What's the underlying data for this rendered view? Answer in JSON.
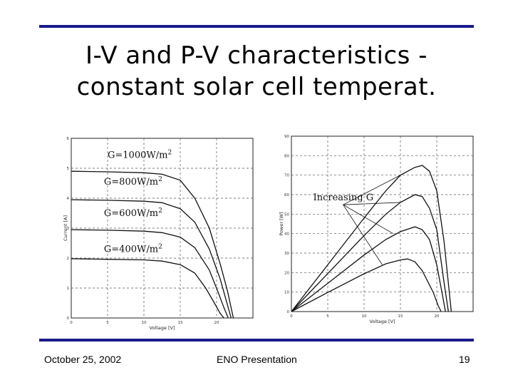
{
  "slide": {
    "title_lines": [
      "I-V and P-V characteristics -",
      "constant solar cell temperat."
    ],
    "footer": {
      "date": "October 25, 2002",
      "presentation": "ENO Presentation",
      "page": "19"
    },
    "rule_color": "#1a1a8c"
  },
  "chart_data": [
    {
      "type": "line",
      "xlabel": "Voltage [V]",
      "ylabel": "Current [A]",
      "xlim": [
        0,
        25
      ],
      "ylim": [
        0,
        6
      ],
      "xticks": [
        "0",
        "5",
        "10",
        "15",
        "20"
      ],
      "yticks": [
        "0",
        "1",
        "2",
        "3",
        "4",
        "5",
        "6"
      ],
      "grid": true,
      "series": [
        {
          "name": "G=1000W/m2",
          "points": [
            [
              0,
              4.9
            ],
            [
              5,
              4.88
            ],
            [
              10,
              4.85
            ],
            [
              12.5,
              4.8
            ],
            [
              15,
              4.6
            ],
            [
              17,
              4.0
            ],
            [
              19,
              3.0
            ],
            [
              20.5,
              1.8
            ],
            [
              21.5,
              0.9
            ],
            [
              22.3,
              0
            ]
          ]
        },
        {
          "name": "G=800W/m2",
          "points": [
            [
              0,
              3.95
            ],
            [
              5,
              3.93
            ],
            [
              10,
              3.9
            ],
            [
              12.5,
              3.85
            ],
            [
              15,
              3.65
            ],
            [
              17,
              3.2
            ],
            [
              19,
              2.3
            ],
            [
              20.5,
              1.3
            ],
            [
              21.3,
              0.6
            ],
            [
              22.0,
              0
            ]
          ]
        },
        {
          "name": "G=600W/m2",
          "points": [
            [
              0,
              2.95
            ],
            [
              5,
              2.93
            ],
            [
              10,
              2.9
            ],
            [
              12.5,
              2.85
            ],
            [
              15,
              2.7
            ],
            [
              17,
              2.35
            ],
            [
              19,
              1.6
            ],
            [
              20.3,
              0.8
            ],
            [
              21.0,
              0.35
            ],
            [
              21.6,
              0
            ]
          ]
        },
        {
          "name": "G=400W/m2",
          "points": [
            [
              0,
              1.98
            ],
            [
              5,
              1.96
            ],
            [
              10,
              1.94
            ],
            [
              12.5,
              1.9
            ],
            [
              15,
              1.78
            ],
            [
              17,
              1.5
            ],
            [
              18.5,
              1.0
            ],
            [
              19.7,
              0.5
            ],
            [
              20.5,
              0.15
            ],
            [
              21.0,
              0
            ]
          ]
        }
      ],
      "annotations": [
        {
          "base": "G=1000W/m",
          "sup": "2",
          "x": 5,
          "y": 5.35
        },
        {
          "base": "G=800W/m",
          "sup": "2",
          "x": 4.5,
          "y": 4.45
        },
        {
          "base": "G=600W/m",
          "sup": "2",
          "x": 4.5,
          "y": 3.4
        },
        {
          "base": "G=400W/m",
          "sup": "2",
          "x": 4.5,
          "y": 2.2
        }
      ]
    },
    {
      "type": "line",
      "xlabel": "Voltage [V]",
      "ylabel": "Power [W]",
      "xlim": [
        0,
        25
      ],
      "ylim": [
        0,
        90
      ],
      "xticks": [
        "0",
        "5",
        "10",
        "15",
        "20"
      ],
      "yticks": [
        "0",
        "10",
        "20",
        "30",
        "40",
        "50",
        "60",
        "70",
        "80",
        "90"
      ],
      "grid": true,
      "series": [
        {
          "points": [
            [
              0,
              0
            ],
            [
              5,
              24
            ],
            [
              10,
              48
            ],
            [
              13,
              62
            ],
            [
              15,
              70
            ],
            [
              17,
              74
            ],
            [
              18,
              75
            ],
            [
              19,
              72
            ],
            [
              20,
              62
            ],
            [
              21,
              36
            ],
            [
              21.5,
              18
            ],
            [
              22,
              0
            ]
          ]
        },
        {
          "points": [
            [
              0,
              0
            ],
            [
              5,
              19.5
            ],
            [
              10,
              39
            ],
            [
              13,
              50
            ],
            [
              15,
              56
            ],
            [
              17,
              60
            ],
            [
              18,
              59
            ],
            [
              19,
              53
            ],
            [
              20,
              42
            ],
            [
              21,
              15
            ],
            [
              21.6,
              0
            ]
          ]
        },
        {
          "points": [
            [
              0,
              0
            ],
            [
              5,
              14.5
            ],
            [
              10,
              29
            ],
            [
              13,
              37
            ],
            [
              15,
              41
            ],
            [
              17,
              43.5
            ],
            [
              18,
              42
            ],
            [
              19,
              37
            ],
            [
              20,
              24
            ],
            [
              20.8,
              8
            ],
            [
              21.2,
              0
            ]
          ]
        },
        {
          "points": [
            [
              0,
              0
            ],
            [
              5,
              9.8
            ],
            [
              10,
              19.4
            ],
            [
              13,
              24.5
            ],
            [
              15,
              26.5
            ],
            [
              16,
              27
            ],
            [
              17,
              25.5
            ],
            [
              18,
              21
            ],
            [
              19.5,
              10
            ],
            [
              20.2,
              3
            ],
            [
              20.6,
              0
            ]
          ]
        }
      ],
      "annotation": {
        "text": "Increasing G",
        "x": 3,
        "y": 57
      }
    }
  ]
}
